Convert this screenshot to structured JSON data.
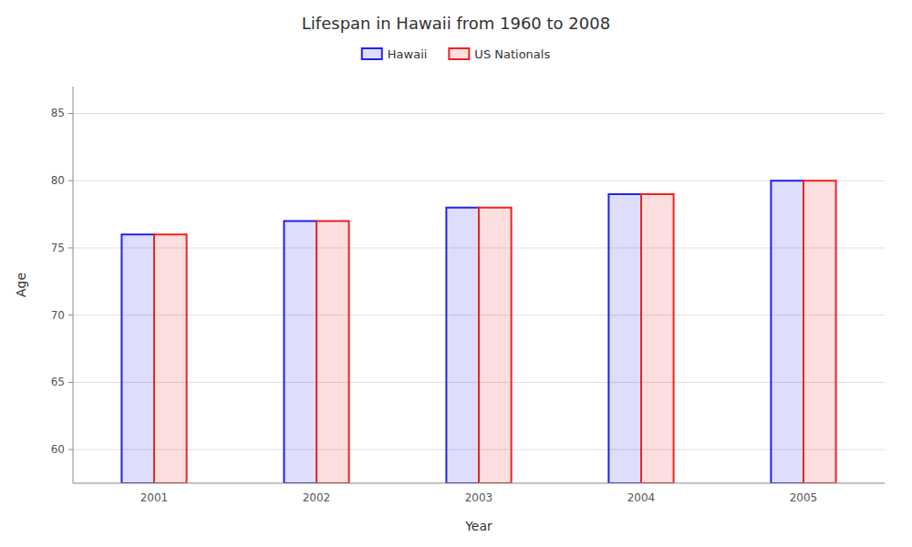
{
  "chart_data": {
    "type": "bar",
    "title": "Lifespan in Hawaii from 1960 to 2008",
    "x_label": "Year",
    "y_label": "Age",
    "categories": [
      "2001",
      "2002",
      "2003",
      "2004",
      "2005"
    ],
    "series": [
      {
        "name": "Hawaii",
        "color": "#2222ee",
        "values": [
          76,
          77,
          78,
          79,
          80
        ]
      },
      {
        "name": "US Nationals",
        "color": "#ee2222",
        "values": [
          76,
          77,
          78,
          79,
          80
        ]
      }
    ],
    "ylim": [
      57.5,
      87
    ],
    "yticks": [
      60,
      65,
      70,
      75,
      80,
      85
    ],
    "grid": true,
    "legend": "top"
  }
}
